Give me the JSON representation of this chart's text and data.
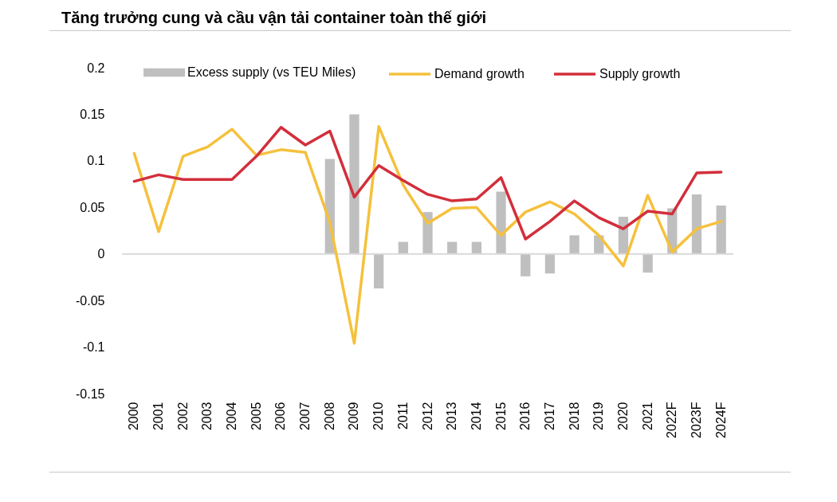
{
  "chart_data": {
    "type": "bar",
    "title": "Tăng trưởng cung và cầu vận tải container toàn thế giới",
    "categories": [
      "2000",
      "2001",
      "2002",
      "2003",
      "2004",
      "2005",
      "2006",
      "2007",
      "2008",
      "2009",
      "2010",
      "2011",
      "2012",
      "2013",
      "2014",
      "2015",
      "2016",
      "2017",
      "2018",
      "2019",
      "2020",
      "2021",
      "2022F",
      "2023F",
      "2024F"
    ],
    "series": [
      {
        "name": "Excess supply (vs TEU Miles)",
        "color": "#bfbfbf",
        "values": [
          null,
          null,
          null,
          null,
          null,
          null,
          null,
          null,
          0.102,
          0.15,
          -0.037,
          0.013,
          0.045,
          0.013,
          0.013,
          0.067,
          -0.024,
          -0.021,
          0.02,
          0.02,
          0.04,
          -0.02,
          0.049,
          0.064,
          0.052
        ]
      },
      {
        "name": "Demand growth",
        "type": "line",
        "color": "#f5c13c",
        "values": [
          0.108,
          0.024,
          0.105,
          0.115,
          0.134,
          0.106,
          0.112,
          0.109,
          0.034,
          -0.096,
          0.137,
          0.074,
          0.033,
          0.049,
          0.05,
          0.02,
          0.045,
          0.056,
          0.043,
          0.02,
          -0.013,
          0.063,
          0.002,
          0.027,
          0.035
        ]
      },
      {
        "name": "Supply growth",
        "type": "line",
        "color": "#d22f3b",
        "values": [
          0.078,
          0.085,
          0.08,
          0.08,
          0.08,
          0.105,
          0.136,
          0.117,
          0.132,
          0.061,
          0.095,
          0.079,
          0.064,
          0.057,
          0.059,
          0.082,
          0.016,
          0.035,
          0.057,
          0.039,
          0.027,
          0.046,
          0.043,
          0.087,
          0.088
        ]
      }
    ],
    "ylim": [
      -0.15,
      0.2
    ],
    "yticks": [
      -0.15,
      -0.1,
      -0.05,
      0,
      0.05,
      0.1,
      0.15,
      0.2
    ],
    "ref_lines": [
      {
        "axis": "y",
        "value": 0,
        "color": "#d9d9d9"
      }
    ],
    "legend": "top"
  }
}
